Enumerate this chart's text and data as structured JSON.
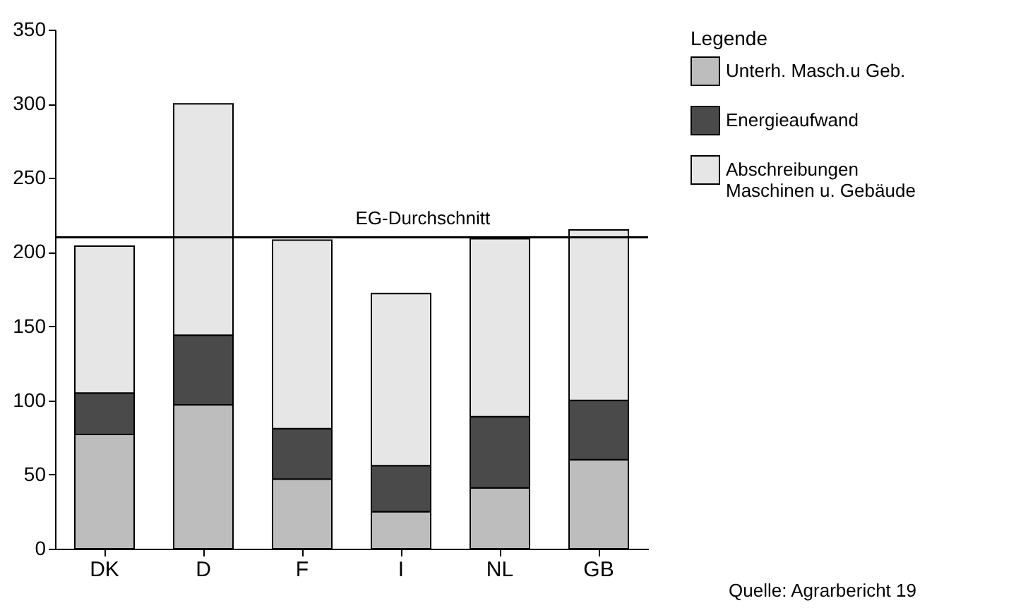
{
  "chart_data": {
    "type": "bar",
    "stacked": true,
    "categories": [
      "DK",
      "D",
      "F",
      "I",
      "NL",
      "GB"
    ],
    "series": [
      {
        "name": "Unterh. Masch.u Geb.",
        "color": "#bdbdbd",
        "values": [
          77,
          97,
          47,
          25,
          41,
          60
        ]
      },
      {
        "name": "Energieaufwand",
        "color": "#4a4a4a",
        "values": [
          28,
          47,
          34,
          31,
          48,
          40
        ]
      },
      {
        "name": "Abschreibungen Maschinen u. Gebäude",
        "color": "#e6e6e6",
        "values": [
          99,
          156,
          127,
          116,
          120,
          115
        ]
      }
    ],
    "ylim": [
      0,
      350
    ],
    "yticks": [
      0,
      50,
      100,
      150,
      200,
      250,
      300,
      350
    ],
    "grid": false,
    "legend": "right",
    "legend_title": "Legende",
    "ref_lines": [
      {
        "axis": "y",
        "value": 210,
        "label": "EG-Durchschnitt"
      }
    ],
    "annotations": [
      "Quelle: Agrarbericht 19"
    ]
  }
}
